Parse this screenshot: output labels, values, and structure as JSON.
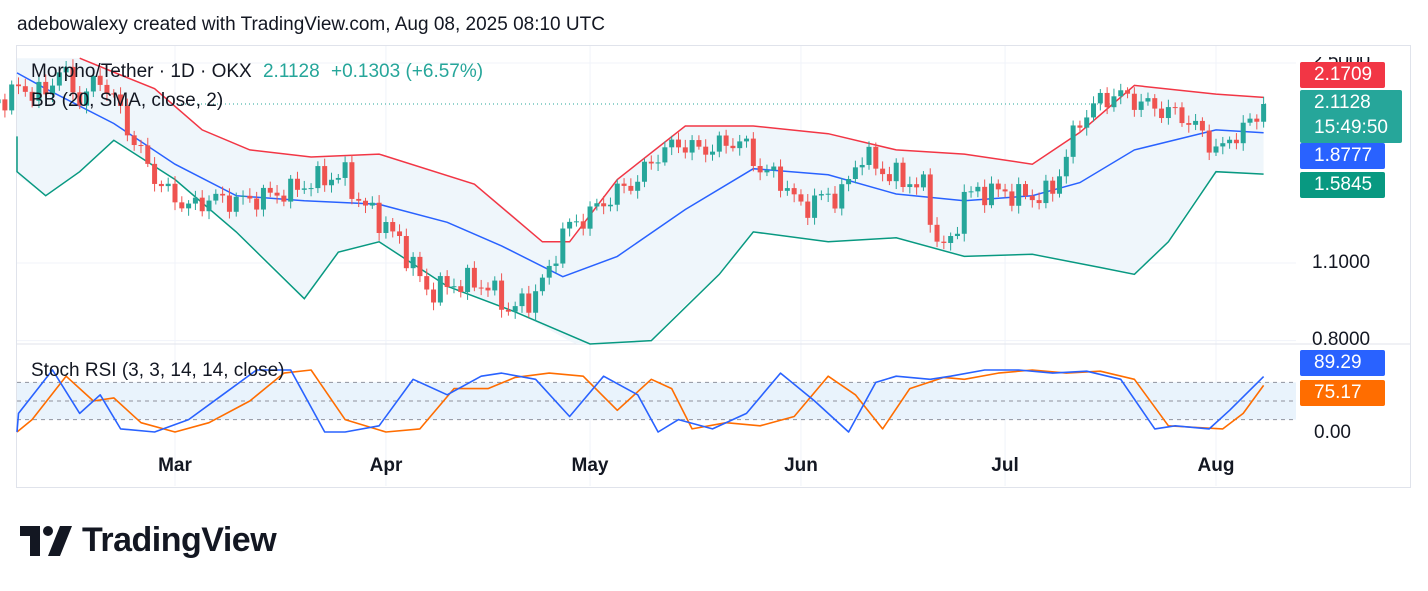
{
  "header": {
    "caption": "adebowalexy created with TradingView.com, Aug 08, 2025 08:10 UTC"
  },
  "legend": {
    "symbol": "Morpho/Tether · 1D · OKX",
    "price": "2.1128",
    "change": "+0.1303 (+6.57%)",
    "indicator": "BB (20, SMA, close, 2)",
    "oscillator": "Stoch RSI (3, 3, 14, 14, close)"
  },
  "price_axis": {
    "labels": [
      "2.5000",
      "1.1000",
      "0.8000"
    ],
    "tags": {
      "upper": "2.1709",
      "last": "2.1128",
      "countdown": "15:49:50",
      "middle": "1.8777",
      "lower": "1.5845"
    }
  },
  "osc_axis": {
    "labels": [
      "0.00"
    ],
    "tags": {
      "k": "89.29",
      "d": "75.17"
    }
  },
  "time_axis": {
    "months": [
      "Mar",
      "Apr",
      "May",
      "Jun",
      "Jul",
      "Aug"
    ]
  },
  "brand": {
    "name": "TradingView"
  },
  "colors": {
    "up": "#26a69a",
    "down": "#ef5350",
    "bb_upper": "#f23645",
    "bb_basis": "#2962ff",
    "bb_lower": "#089981",
    "bb_fill": "#eff6fb",
    "stoch_k": "#2962ff",
    "stoch_d": "#ff6d00",
    "stoch_band": "#e9f3fc"
  },
  "chart_data": [
    {
      "type": "candlestick",
      "title": "Morpho/Tether · 1D · OKX",
      "y_scale": "log",
      "x_range": [
        "2025-02-01",
        "2025-08-08"
      ],
      "ylim": [
        0.8,
        2.5
      ],
      "last_close": 2.1128,
      "close_path": [
        [
          "2025-02-01",
          2.05
        ],
        [
          "2025-02-06",
          2.25
        ],
        [
          "2025-02-10",
          2.2
        ],
        [
          "2025-02-12",
          2.45
        ],
        [
          "2025-02-15",
          2.15
        ],
        [
          "2025-02-18",
          2.35
        ],
        [
          "2025-02-21",
          2.05
        ],
        [
          "2025-02-23",
          1.8
        ],
        [
          "2025-02-27",
          1.5
        ],
        [
          "2025-03-03",
          1.38
        ],
        [
          "2025-03-06",
          1.43
        ],
        [
          "2025-03-11",
          1.42
        ],
        [
          "2025-03-18",
          1.48
        ],
        [
          "2025-03-22",
          1.55
        ],
        [
          "2025-03-26",
          1.58
        ],
        [
          "2025-03-28",
          1.42
        ],
        [
          "2025-03-31",
          1.32
        ],
        [
          "2025-04-03",
          1.2
        ],
        [
          "2025-04-07",
          0.98
        ],
        [
          "2025-04-10",
          1.0
        ],
        [
          "2025-04-13",
          1.02
        ],
        [
          "2025-04-16",
          1.0
        ],
        [
          "2025-04-19",
          0.91
        ],
        [
          "2025-04-22",
          0.94
        ],
        [
          "2025-04-25",
          1.06
        ],
        [
          "2025-04-27",
          1.25
        ],
        [
          "2025-05-01",
          1.35
        ],
        [
          "2025-05-05",
          1.47
        ],
        [
          "2025-05-08",
          1.55
        ],
        [
          "2025-05-11",
          1.72
        ],
        [
          "2025-05-14",
          1.8
        ],
        [
          "2025-05-17",
          1.75
        ],
        [
          "2025-05-20",
          1.78
        ],
        [
          "2025-05-23",
          1.82
        ],
        [
          "2025-05-26",
          1.62
        ],
        [
          "2025-05-29",
          1.55
        ],
        [
          "2025-06-01",
          1.38
        ],
        [
          "2025-06-04",
          1.44
        ],
        [
          "2025-06-07",
          1.46
        ],
        [
          "2025-06-10",
          1.72
        ],
        [
          "2025-06-13",
          1.6
        ],
        [
          "2025-06-16",
          1.55
        ],
        [
          "2025-06-19",
          1.5
        ],
        [
          "2025-06-21",
          1.2
        ],
        [
          "2025-06-23",
          1.18
        ],
        [
          "2025-06-25",
          1.45
        ],
        [
          "2025-06-28",
          1.48
        ],
        [
          "2025-07-01",
          1.47
        ],
        [
          "2025-07-05",
          1.44
        ],
        [
          "2025-07-08",
          1.48
        ],
        [
          "2025-07-10",
          1.72
        ],
        [
          "2025-07-12",
          1.97
        ],
        [
          "2025-07-14",
          2.1
        ],
        [
          "2025-07-17",
          2.2
        ],
        [
          "2025-07-20",
          2.15
        ],
        [
          "2025-07-22",
          2.1
        ],
        [
          "2025-07-25",
          2.05
        ],
        [
          "2025-07-28",
          1.98
        ],
        [
          "2025-07-31",
          1.8
        ],
        [
          "2025-08-02",
          1.75
        ],
        [
          "2025-08-04",
          1.88
        ],
        [
          "2025-08-06",
          1.95
        ],
        [
          "2025-08-07",
          1.98
        ],
        [
          "2025-08-08",
          2.1128
        ]
      ],
      "bollinger": {
        "upper": [
          [
            "2025-02-15",
            2.55
          ],
          [
            "2025-02-21",
            2.38
          ],
          [
            "2025-02-26",
            2.25
          ],
          [
            "2025-03-05",
            1.9
          ],
          [
            "2025-03-12",
            1.75
          ],
          [
            "2025-03-21",
            1.7
          ],
          [
            "2025-03-31",
            1.72
          ],
          [
            "2025-04-14",
            1.52
          ],
          [
            "2025-04-24",
            1.2
          ],
          [
            "2025-04-28",
            1.2
          ],
          [
            "2025-05-05",
            1.55
          ],
          [
            "2025-05-15",
            1.93
          ],
          [
            "2025-05-25",
            1.93
          ],
          [
            "2025-06-05",
            1.87
          ],
          [
            "2025-06-15",
            1.75
          ],
          [
            "2025-06-25",
            1.72
          ],
          [
            "2025-07-05",
            1.65
          ],
          [
            "2025-07-12",
            1.88
          ],
          [
            "2025-07-20",
            2.28
          ],
          [
            "2025-08-01",
            2.2
          ],
          [
            "2025-08-08",
            2.1709
          ]
        ],
        "basis": [
          [
            "2025-02-01",
            2.4
          ],
          [
            "2025-02-10",
            2.25
          ],
          [
            "2025-02-20",
            1.95
          ],
          [
            "2025-03-01",
            1.65
          ],
          [
            "2025-03-10",
            1.45
          ],
          [
            "2025-03-20",
            1.42
          ],
          [
            "2025-03-31",
            1.4
          ],
          [
            "2025-04-10",
            1.3
          ],
          [
            "2025-04-18",
            1.18
          ],
          [
            "2025-04-27",
            1.04
          ],
          [
            "2025-05-05",
            1.13
          ],
          [
            "2025-05-15",
            1.37
          ],
          [
            "2025-05-25",
            1.62
          ],
          [
            "2025-06-05",
            1.58
          ],
          [
            "2025-06-15",
            1.46
          ],
          [
            "2025-06-25",
            1.42
          ],
          [
            "2025-07-05",
            1.45
          ],
          [
            "2025-07-12",
            1.53
          ],
          [
            "2025-07-20",
            1.75
          ],
          [
            "2025-08-01",
            1.9
          ],
          [
            "2025-08-08",
            1.8777
          ]
        ],
        "lower": [
          [
            "2025-02-01",
            1.85
          ],
          [
            "2025-02-05",
            1.6
          ],
          [
            "2025-02-10",
            1.45
          ],
          [
            "2025-02-15",
            1.6
          ],
          [
            "2025-02-20",
            1.82
          ],
          [
            "2025-03-01",
            1.55
          ],
          [
            "2025-03-10",
            1.25
          ],
          [
            "2025-03-20",
            0.95
          ],
          [
            "2025-03-25",
            1.15
          ],
          [
            "2025-03-31",
            1.2
          ],
          [
            "2025-04-10",
            1.0
          ],
          [
            "2025-04-20",
            0.9
          ],
          [
            "2025-05-01",
            0.76
          ],
          [
            "2025-05-10",
            0.8
          ],
          [
            "2025-05-20",
            1.05
          ],
          [
            "2025-05-25",
            1.25
          ],
          [
            "2025-06-05",
            1.2
          ],
          [
            "2025-06-15",
            1.22
          ],
          [
            "2025-06-25",
            1.13
          ],
          [
            "2025-07-05",
            1.14
          ],
          [
            "2025-07-15",
            1.08
          ],
          [
            "2025-07-20",
            1.05
          ],
          [
            "2025-07-25",
            1.2
          ],
          [
            "2025-08-01",
            1.6
          ],
          [
            "2025-08-08",
            1.5845
          ]
        ]
      }
    },
    {
      "type": "line",
      "title": "Stoch RSI (3, 3, 14, 14, close)",
      "ylim": [
        0,
        100
      ],
      "bands": [
        20,
        80
      ],
      "series": [
        {
          "name": "K",
          "x": [
            "2025-02-01",
            "2025-02-06",
            "2025-02-11",
            "2025-02-15",
            "2025-02-18",
            "2025-02-21",
            "2025-02-26",
            "2025-03-03",
            "2025-03-08",
            "2025-03-13",
            "2025-03-18",
            "2025-03-23",
            "2025-03-26",
            "2025-03-31",
            "2025-04-05",
            "2025-04-10",
            "2025-04-15",
            "2025-04-18",
            "2025-04-23",
            "2025-04-28",
            "2025-05-03",
            "2025-05-08",
            "2025-05-11",
            "2025-05-14",
            "2025-05-19",
            "2025-05-24",
            "2025-05-29",
            "2025-06-03",
            "2025-06-08",
            "2025-06-12",
            "2025-06-15",
            "2025-06-20",
            "2025-06-23",
            "2025-06-28",
            "2025-07-03",
            "2025-07-08",
            "2025-07-13",
            "2025-07-18",
            "2025-07-23",
            "2025-07-26",
            "2025-07-31",
            "2025-08-03",
            "2025-08-08"
          ],
          "values": [
            0,
            30,
            100,
            30,
            60,
            5,
            0,
            20,
            60,
            100,
            100,
            0,
            0,
            10,
            85,
            60,
            90,
            95,
            85,
            25,
            90,
            60,
            0,
            20,
            5,
            30,
            95,
            50,
            0,
            80,
            90,
            85,
            90,
            100,
            100,
            95,
            98,
            85,
            5,
            10,
            5,
            35,
            89.29
          ]
        },
        {
          "name": "D",
          "x": [
            "2025-02-01",
            "2025-02-08",
            "2025-02-13",
            "2025-02-17",
            "2025-02-20",
            "2025-02-24",
            "2025-03-01",
            "2025-03-06",
            "2025-03-12",
            "2025-03-17",
            "2025-03-21",
            "2025-03-26",
            "2025-04-01",
            "2025-04-06",
            "2025-04-11",
            "2025-04-16",
            "2025-04-20",
            "2025-04-25",
            "2025-04-30",
            "2025-05-05",
            "2025-05-10",
            "2025-05-13",
            "2025-05-16",
            "2025-05-21",
            "2025-05-26",
            "2025-05-31",
            "2025-06-05",
            "2025-06-09",
            "2025-06-13",
            "2025-06-17",
            "2025-06-22",
            "2025-06-25",
            "2025-06-30",
            "2025-07-05",
            "2025-07-10",
            "2025-07-15",
            "2025-07-20",
            "2025-07-25",
            "2025-07-28",
            "2025-08-02",
            "2025-08-05",
            "2025-08-08"
          ],
          "values": [
            0,
            20,
            90,
            50,
            55,
            15,
            0,
            15,
            50,
            95,
            100,
            20,
            0,
            5,
            70,
            70,
            88,
            95,
            90,
            35,
            85,
            70,
            5,
            15,
            10,
            25,
            90,
            60,
            5,
            70,
            88,
            85,
            95,
            100,
            95,
            98,
            85,
            10,
            8,
            5,
            30,
            75.17
          ]
        }
      ]
    }
  ]
}
